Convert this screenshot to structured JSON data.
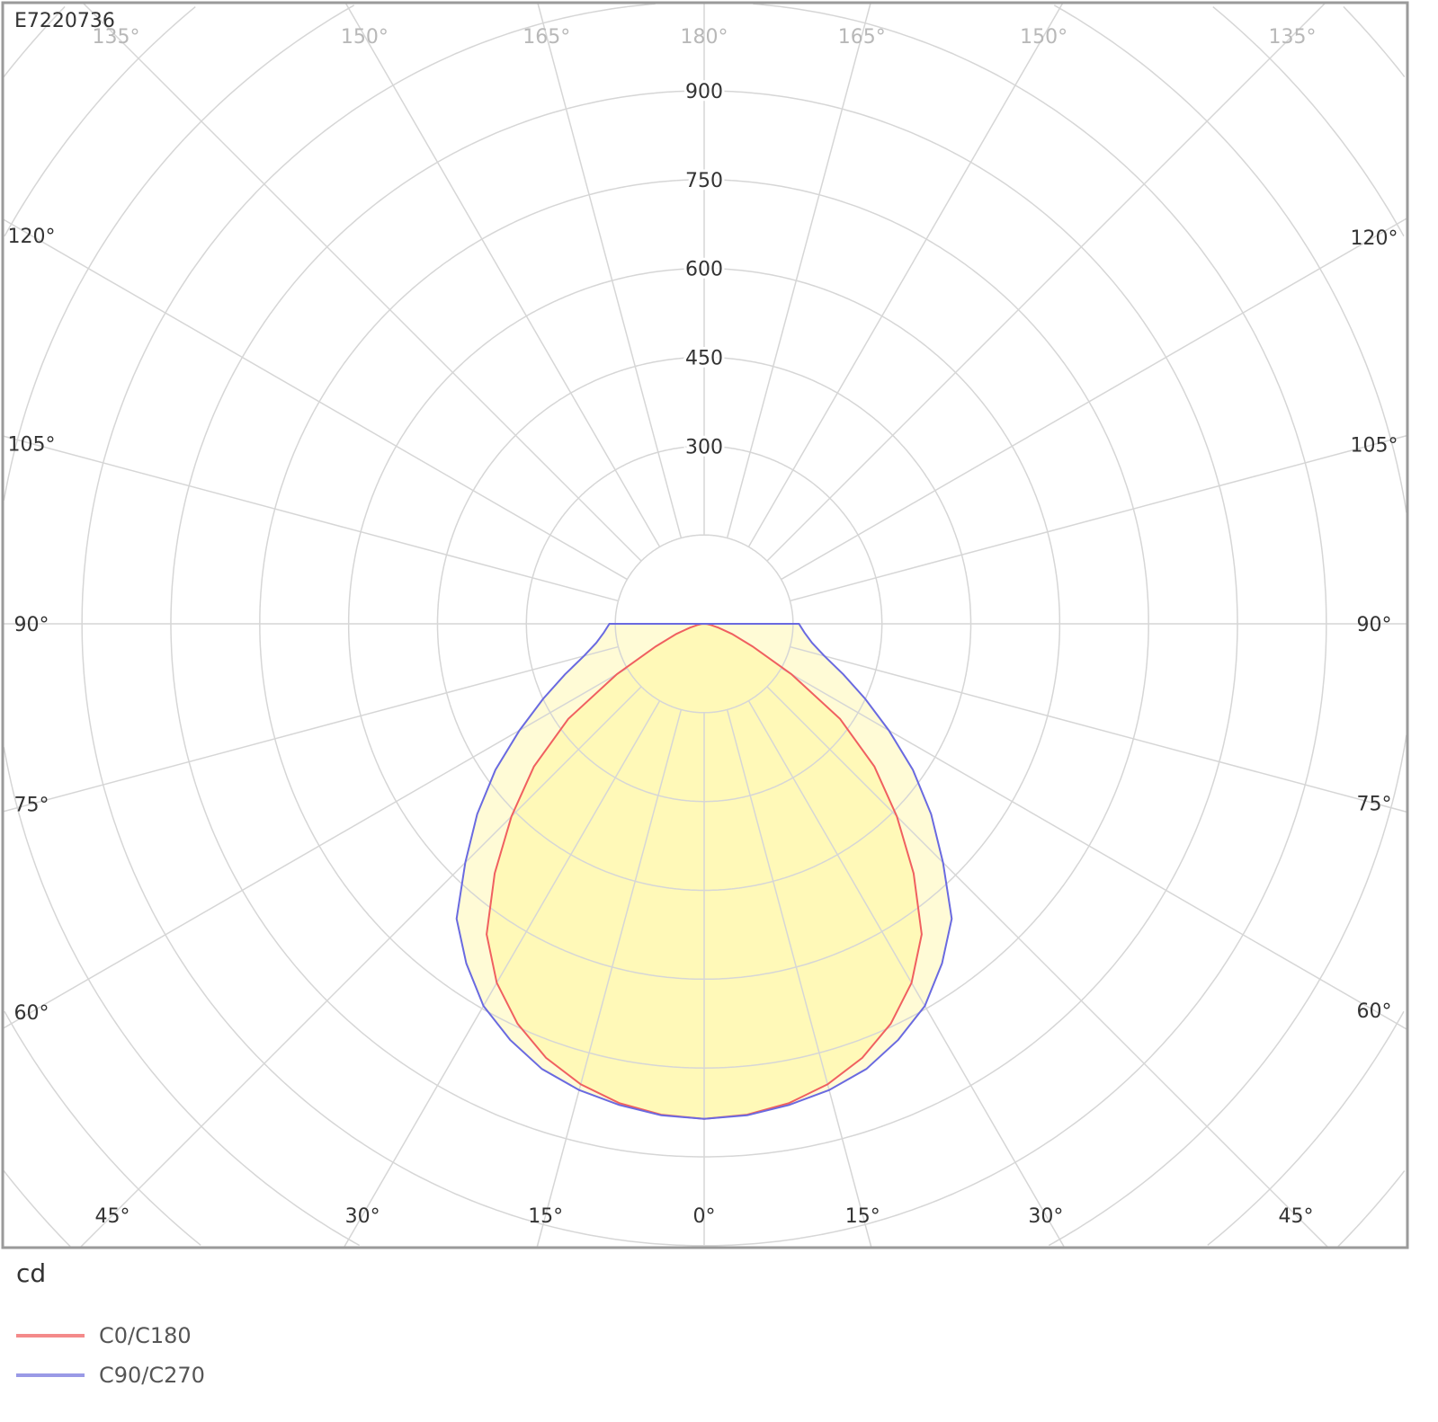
{
  "chart_data": {
    "type": "polar",
    "title": "E7220736",
    "unit_label": "cd",
    "radial_ticks": [
      300,
      450,
      600,
      750,
      900
    ],
    "radial_step": 150,
    "radial_rings_max": 1650,
    "angle_step_deg": 15,
    "angle_labels": {
      "bottom": [
        "45°",
        "30°",
        "15°",
        "0°",
        "15°",
        "30°",
        "45°"
      ],
      "left": [
        "120°",
        "105°",
        "90°",
        "75°",
        "60°"
      ],
      "right": [
        "120°",
        "105°",
        "90°",
        "75°",
        "60°"
      ],
      "top": [
        "135°",
        "150°",
        "165°",
        "180°",
        "165°",
        "150°",
        "135°"
      ]
    },
    "grid": true,
    "legend_placement": "bottom-left",
    "angles_deg": [
      0,
      5,
      10,
      15,
      20,
      25,
      30,
      35,
      40,
      45,
      50,
      55,
      60,
      65,
      70,
      75,
      80,
      85,
      90
    ],
    "series": [
      {
        "name": "C0/C180",
        "color": "#f06060",
        "values": [
          836,
          832,
          822,
          805,
          780,
          745,
          700,
          640,
          550,
          460,
          375,
          280,
          170,
          90,
          50,
          25,
          12,
          5,
          0
        ]
      },
      {
        "name": "C90/C270",
        "color": "#6a6ae0",
        "values": [
          836,
          833,
          825,
          815,
          800,
          775,
          745,
          700,
          650,
          570,
          500,
          430,
          360,
          300,
          250,
          210,
          185,
          170,
          160
        ]
      }
    ],
    "fill_color": "#fff9b8"
  }
}
